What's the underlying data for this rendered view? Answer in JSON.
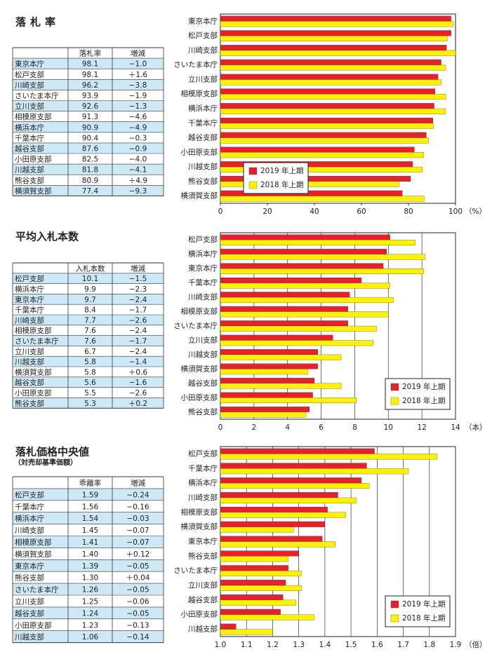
{
  "tables": [
    {
      "title": "落札率",
      "header": [
        "落札率",
        "増減"
      ],
      "rows": [
        [
          "東京本庁",
          "98.1",
          "−1.0"
        ],
        [
          "松戸支部",
          "98.1",
          "＋1.6"
        ],
        [
          "川崎支部",
          "96.2",
          "−3.8"
        ],
        [
          "さいたま本庁",
          "93.9",
          "−1.9"
        ],
        [
          "立川支部",
          "92.6",
          "−1.3"
        ],
        [
          "相模原支部",
          "91.3",
          "−4.6"
        ],
        [
          "横浜本庁",
          "90.9",
          "−4.9"
        ],
        [
          "千葉本庁",
          "90.4",
          "−0.3"
        ],
        [
          "越谷支部",
          "87.6",
          "−0.9"
        ],
        [
          "小田原支部",
          "82.5",
          "−4.0"
        ],
        [
          "川越支部",
          "81.8",
          "−4.1"
        ],
        [
          "熊谷支部",
          "80.9",
          "＋4.9"
        ],
        [
          "横須賀支部",
          "77.4",
          "−9.3"
        ]
      ]
    },
    {
      "title": "平均入札本数",
      "header": [
        "入札本数",
        "増減"
      ],
      "rows": [
        [
          "松戸支部",
          "10.1",
          "−1.5"
        ],
        [
          "横浜本庁",
          "9.9",
          "−2.3"
        ],
        [
          "東京本庁",
          "9.7",
          "−2.4"
        ],
        [
          "千葉本庁",
          "8.4",
          "−1.7"
        ],
        [
          "川崎支部",
          "7.7",
          "−2.6"
        ],
        [
          "相模原支部",
          "7.6",
          "−2.4"
        ],
        [
          "さいたま本庁",
          "7.6",
          "−1.7"
        ],
        [
          "立川支部",
          "6.7",
          "−2.4"
        ],
        [
          "川越支部",
          "5.8",
          "−1.4"
        ],
        [
          "横須賀支部",
          "5.8",
          "＋0.6"
        ],
        [
          "越谷支部",
          "5.6",
          "−1.6"
        ],
        [
          "小田原支部",
          "5.5",
          "−2.6"
        ],
        [
          "熊谷支部",
          "5.3",
          "＋0.2"
        ]
      ]
    },
    {
      "title": "落札価格中央値",
      "subtitle": "（対売却基準価額）",
      "header": [
        "乖離率",
        "増減"
      ],
      "rows": [
        [
          "松戸支部",
          "1.59",
          "−0.24"
        ],
        [
          "千葉本庁",
          "1.56",
          "−0.16"
        ],
        [
          "横浜本庁",
          "1.54",
          "−0.03"
        ],
        [
          "川崎支部",
          "1.45",
          "−0.07"
        ],
        [
          "相模原支部",
          "1.41",
          "−0.07"
        ],
        [
          "横須賀支部",
          "1.40",
          "＋0.12"
        ],
        [
          "東京本庁",
          "1.39",
          "−0.05"
        ],
        [
          "熊谷支部",
          "1.30",
          "＋0.04"
        ],
        [
          "さいたま本庁",
          "1.26",
          "−0.05"
        ],
        [
          "立川支部",
          "1.25",
          "−0.06"
        ],
        [
          "越谷支部",
          "1.24",
          "−0.05"
        ],
        [
          "小田原支部",
          "1.23",
          "−0.13"
        ],
        [
          "川越支部",
          "1.06",
          "−0.14"
        ]
      ]
    }
  ],
  "chart_data": [
    {
      "type": "bar",
      "orientation": "horizontal",
      "categories": [
        "東京本庁",
        "松戸支部",
        "川崎支部",
        "さいたま本庁",
        "立川支部",
        "相模原支部",
        "横浜本庁",
        "千葉本庁",
        "越谷支部",
        "小田原支部",
        "川越支部",
        "熊谷支部",
        "横須賀支部"
      ],
      "series": [
        {
          "name": "2019 年上期",
          "color": "#e8202a",
          "values": [
            98.1,
            98.1,
            96.2,
            93.9,
            92.6,
            91.3,
            90.9,
            90.4,
            87.6,
            82.5,
            81.8,
            80.9,
            77.4
          ]
        },
        {
          "name": "2018 年上期",
          "color": "#fff200",
          "values": [
            99.1,
            96.5,
            100.0,
            95.8,
            93.9,
            95.9,
            95.8,
            90.7,
            88.5,
            86.5,
            85.9,
            76.0,
            86.7
          ]
        }
      ],
      "xlim": [
        0,
        100
      ],
      "xticks": [
        0,
        20,
        40,
        60,
        80,
        100
      ],
      "unit": "（%）",
      "grid": false,
      "legend": "lower left"
    },
    {
      "type": "bar",
      "orientation": "horizontal",
      "categories": [
        "松戸支部",
        "横浜本庁",
        "東京本庁",
        "千葉本庁",
        "川崎支部",
        "相模原支部",
        "さいたま本庁",
        "立川支部",
        "川越支部",
        "横須賀支部",
        "越谷支部",
        "小田原支部",
        "熊谷支部"
      ],
      "series": [
        {
          "name": "2019 年上期",
          "color": "#e8202a",
          "values": [
            10.1,
            9.9,
            9.7,
            8.4,
            7.7,
            7.6,
            7.6,
            6.7,
            5.8,
            5.8,
            5.6,
            5.5,
            5.3
          ]
        },
        {
          "name": "2018 年上期",
          "color": "#fff200",
          "values": [
            11.6,
            12.2,
            12.1,
            10.1,
            10.3,
            10.0,
            9.3,
            9.1,
            7.2,
            5.2,
            7.2,
            8.1,
            5.1
          ]
        }
      ],
      "xlim": [
        0,
        14
      ],
      "xticks": [
        0,
        2,
        4,
        6,
        8,
        10,
        12,
        14
      ],
      "unit": "（本）",
      "grid": true,
      "legend": "lower right"
    },
    {
      "type": "bar",
      "orientation": "horizontal",
      "categories": [
        "松戸支部",
        "千葉本庁",
        "横浜本庁",
        "川崎支部",
        "相模原支部",
        "横須賀支部",
        "東京本庁",
        "熊谷支部",
        "さいたま本庁",
        "立川支部",
        "越谷支部",
        "小田原支部",
        "川越支部"
      ],
      "series": [
        {
          "name": "2019 年上期",
          "color": "#e8202a",
          "values": [
            1.59,
            1.56,
            1.54,
            1.45,
            1.41,
            1.4,
            1.39,
            1.3,
            1.26,
            1.25,
            1.24,
            1.23,
            1.06
          ]
        },
        {
          "name": "2018 年上期",
          "color": "#fff200",
          "values": [
            1.83,
            1.72,
            1.57,
            1.52,
            1.48,
            1.28,
            1.44,
            1.26,
            1.31,
            1.31,
            1.29,
            1.36,
            1.2
          ]
        }
      ],
      "xlim": [
        1.0,
        1.9
      ],
      "xticks": [
        {
          "value": 1,
          "label": "1.0"
        },
        1.1,
        1.2,
        1.3,
        1.4,
        1.5,
        1.6,
        1.7,
        1.8,
        1.9
      ],
      "unit": "（倍）",
      "grid": true,
      "legend": "lower right"
    }
  ]
}
